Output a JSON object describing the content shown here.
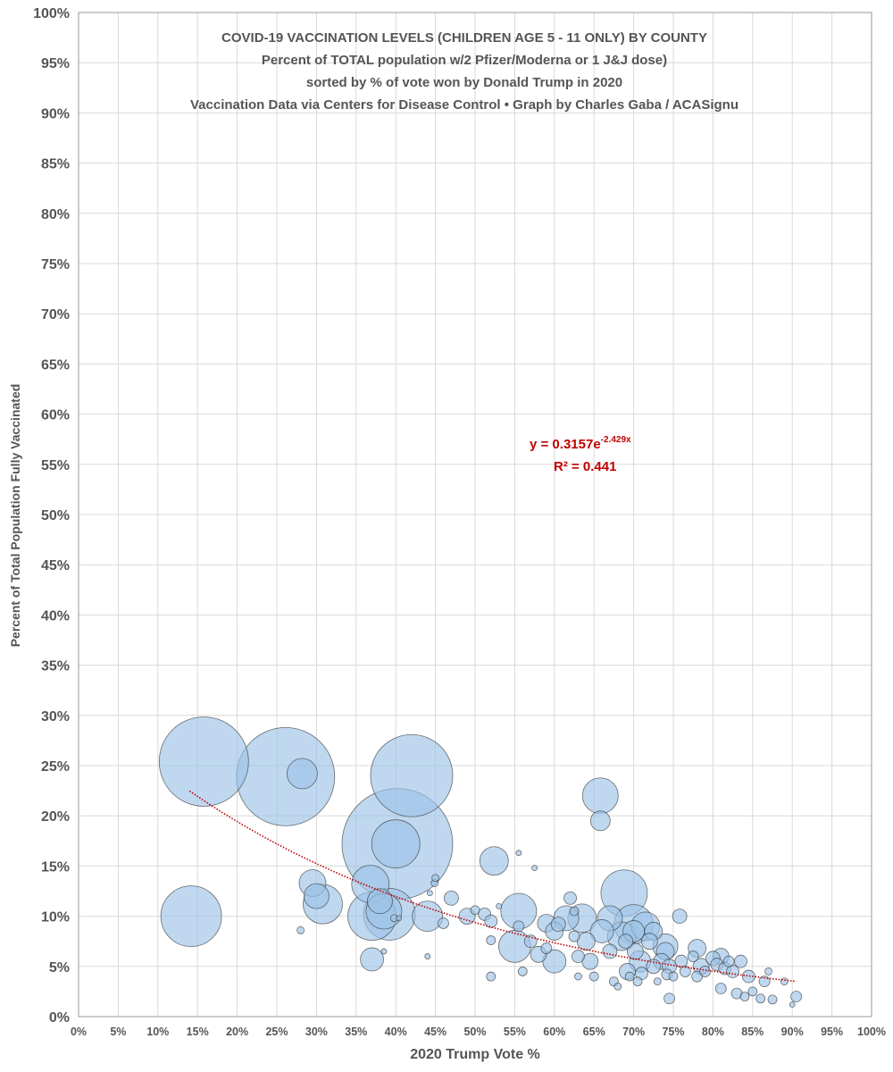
{
  "chart_data": {
    "type": "scatter",
    "title_lines": [
      "COVID-19 VACCINATION LEVELS (CHILDREN AGE 5 - 11 ONLY) BY COUNTY",
      "Percent of TOTAL population w/2 Pfizer/Moderna or 1 J&J dose)",
      "sorted by % of vote won by Donald Trump in 2020",
      "Vaccination Data via Centers for Disease Control • Graph by Charles Gaba / ACASignu"
    ],
    "xlabel": "2020 Trump Vote %",
    "ylabel": "Percent of Total Population Fully Vaccinated",
    "xlim": [
      0,
      100
    ],
    "ylim": [
      0,
      100
    ],
    "x_ticks": [
      "0%",
      "5%",
      "10%",
      "15%",
      "20%",
      "25%",
      "30%",
      "35%",
      "40%",
      "45%",
      "50%",
      "55%",
      "60%",
      "65%",
      "70%",
      "75%",
      "80%",
      "85%",
      "90%",
      "95%",
      "100%"
    ],
    "y_ticks": [
      "0%",
      "5%",
      "10%",
      "15%",
      "20%",
      "25%",
      "30%",
      "35%",
      "40%",
      "45%",
      "50%",
      "55%",
      "60%",
      "65%",
      "70%",
      "75%",
      "80%",
      "85%",
      "90%",
      "95%",
      "100%"
    ],
    "grid": true,
    "bubble_color": "#9dc3e6",
    "bubble_alpha": 0.65,
    "bubble_edge": "#333333",
    "trendline": {
      "type": "exponential",
      "a": 0.3157,
      "b": -2.429,
      "x_range": [
        14,
        90.5
      ],
      "color": "#c00000",
      "label_main": "y = 0.3157e",
      "label_exp": "-2.429x",
      "r2_label": "R² = 0.441"
    },
    "points": [
      {
        "x": 15.8,
        "y": 25.4,
        "size": 50
      },
      {
        "x": 14.2,
        "y": 10.0,
        "size": 34
      },
      {
        "x": 26.1,
        "y": 23.9,
        "size": 55
      },
      {
        "x": 28.2,
        "y": 24.2,
        "size": 17
      },
      {
        "x": 29.5,
        "y": 13.3,
        "size": 15
      },
      {
        "x": 30.0,
        "y": 12.0,
        "size": 14
      },
      {
        "x": 30.8,
        "y": 11.2,
        "size": 22
      },
      {
        "x": 28.0,
        "y": 8.6,
        "size": 4
      },
      {
        "x": 36.8,
        "y": 13.2,
        "size": 21
      },
      {
        "x": 37.0,
        "y": 10.0,
        "size": 27
      },
      {
        "x": 38.0,
        "y": 11.5,
        "size": 14
      },
      {
        "x": 38.5,
        "y": 10.5,
        "size": 20
      },
      {
        "x": 39.2,
        "y": 10.2,
        "size": 29
      },
      {
        "x": 40.2,
        "y": 17.2,
        "size": 62
      },
      {
        "x": 40.0,
        "y": 17.2,
        "size": 27
      },
      {
        "x": 42.0,
        "y": 24.0,
        "size": 46
      },
      {
        "x": 37.0,
        "y": 5.7,
        "size": 13
      },
      {
        "x": 38.5,
        "y": 6.5,
        "size": 3
      },
      {
        "x": 39.8,
        "y": 9.8,
        "size": 4
      },
      {
        "x": 40.4,
        "y": 9.8,
        "size": 3
      },
      {
        "x": 44.0,
        "y": 10.0,
        "size": 17
      },
      {
        "x": 44.3,
        "y": 12.3,
        "size": 3
      },
      {
        "x": 44.9,
        "y": 13.3,
        "size": 4
      },
      {
        "x": 45.0,
        "y": 13.8,
        "size": 4
      },
      {
        "x": 44.0,
        "y": 6.0,
        "size": 3
      },
      {
        "x": 46.0,
        "y": 9.3,
        "size": 6
      },
      {
        "x": 47.0,
        "y": 11.8,
        "size": 8
      },
      {
        "x": 49.0,
        "y": 10.0,
        "size": 9
      },
      {
        "x": 50.0,
        "y": 10.6,
        "size": 5
      },
      {
        "x": 51.2,
        "y": 10.2,
        "size": 7
      },
      {
        "x": 52.0,
        "y": 9.5,
        "size": 7
      },
      {
        "x": 52.4,
        "y": 15.5,
        "size": 16
      },
      {
        "x": 52.0,
        "y": 7.6,
        "size": 5
      },
      {
        "x": 53.0,
        "y": 11.0,
        "size": 3
      },
      {
        "x": 55.5,
        "y": 16.3,
        "size": 3
      },
      {
        "x": 52.0,
        "y": 4.0,
        "size": 5
      },
      {
        "x": 55.5,
        "y": 10.5,
        "size": 20
      },
      {
        "x": 55.0,
        "y": 7.0,
        "size": 18
      },
      {
        "x": 55.5,
        "y": 9.0,
        "size": 6
      },
      {
        "x": 56.0,
        "y": 4.5,
        "size": 5
      },
      {
        "x": 57.5,
        "y": 14.8,
        "size": 3
      },
      {
        "x": 57.0,
        "y": 7.5,
        "size": 7
      },
      {
        "x": 58.0,
        "y": 6.2,
        "size": 9
      },
      {
        "x": 59.0,
        "y": 9.3,
        "size": 10
      },
      {
        "x": 59.0,
        "y": 6.8,
        "size": 6
      },
      {
        "x": 60.0,
        "y": 5.5,
        "size": 13
      },
      {
        "x": 60.0,
        "y": 8.5,
        "size": 10
      },
      {
        "x": 60.5,
        "y": 9.2,
        "size": 8
      },
      {
        "x": 61.5,
        "y": 9.8,
        "size": 14
      },
      {
        "x": 62.0,
        "y": 11.8,
        "size": 7
      },
      {
        "x": 62.5,
        "y": 10.5,
        "size": 5
      },
      {
        "x": 62.5,
        "y": 8.0,
        "size": 6
      },
      {
        "x": 63.0,
        "y": 6.0,
        "size": 7
      },
      {
        "x": 63.5,
        "y": 9.8,
        "size": 16
      },
      {
        "x": 63.0,
        "y": 4.0,
        "size": 4
      },
      {
        "x": 64.0,
        "y": 7.5,
        "size": 10
      },
      {
        "x": 64.5,
        "y": 5.5,
        "size": 9
      },
      {
        "x": 65.0,
        "y": 4.0,
        "size": 5
      },
      {
        "x": 65.8,
        "y": 22.0,
        "size": 20
      },
      {
        "x": 65.8,
        "y": 19.5,
        "size": 11
      },
      {
        "x": 66.0,
        "y": 8.5,
        "size": 13
      },
      {
        "x": 67.0,
        "y": 9.8,
        "size": 14
      },
      {
        "x": 67.0,
        "y": 6.5,
        "size": 8
      },
      {
        "x": 67.5,
        "y": 3.5,
        "size": 5
      },
      {
        "x": 68.0,
        "y": 3.0,
        "size": 4
      },
      {
        "x": 68.5,
        "y": 8.0,
        "size": 16
      },
      {
        "x": 68.8,
        "y": 12.3,
        "size": 26
      },
      {
        "x": 69.0,
        "y": 7.5,
        "size": 8
      },
      {
        "x": 69.2,
        "y": 4.5,
        "size": 9
      },
      {
        "x": 69.5,
        "y": 4.0,
        "size": 5
      },
      {
        "x": 70.0,
        "y": 9.2,
        "size": 22
      },
      {
        "x": 70.0,
        "y": 8.5,
        "size": 12
      },
      {
        "x": 70.2,
        "y": 6.5,
        "size": 9
      },
      {
        "x": 70.5,
        "y": 3.5,
        "size": 5
      },
      {
        "x": 70.8,
        "y": 5.5,
        "size": 12
      },
      {
        "x": 71.0,
        "y": 4.3,
        "size": 7
      },
      {
        "x": 71.5,
        "y": 9.0,
        "size": 16
      },
      {
        "x": 72.0,
        "y": 7.5,
        "size": 9
      },
      {
        "x": 72.5,
        "y": 8.5,
        "size": 10
      },
      {
        "x": 72.5,
        "y": 5.0,
        "size": 8
      },
      {
        "x": 73.0,
        "y": 3.5,
        "size": 4
      },
      {
        "x": 73.5,
        "y": 5.5,
        "size": 9
      },
      {
        "x": 74.0,
        "y": 7.0,
        "size": 14
      },
      {
        "x": 74.0,
        "y": 6.5,
        "size": 10
      },
      {
        "x": 74.2,
        "y": 4.2,
        "size": 6
      },
      {
        "x": 74.5,
        "y": 5.0,
        "size": 8
      },
      {
        "x": 74.5,
        "y": 1.8,
        "size": 6
      },
      {
        "x": 75.0,
        "y": 4.0,
        "size": 5
      },
      {
        "x": 75.8,
        "y": 10.0,
        "size": 8
      },
      {
        "x": 76.0,
        "y": 5.5,
        "size": 7
      },
      {
        "x": 76.5,
        "y": 4.5,
        "size": 6
      },
      {
        "x": 77.5,
        "y": 6.0,
        "size": 6
      },
      {
        "x": 78.0,
        "y": 6.8,
        "size": 10
      },
      {
        "x": 78.5,
        "y": 5.0,
        "size": 9
      },
      {
        "x": 78.0,
        "y": 4.0,
        "size": 6
      },
      {
        "x": 79.0,
        "y": 4.5,
        "size": 6
      },
      {
        "x": 80.0,
        "y": 5.8,
        "size": 8
      },
      {
        "x": 80.5,
        "y": 5.2,
        "size": 7
      },
      {
        "x": 81.0,
        "y": 6.0,
        "size": 9
      },
      {
        "x": 81.5,
        "y": 4.8,
        "size": 7
      },
      {
        "x": 81.0,
        "y": 2.8,
        "size": 6
      },
      {
        "x": 82.0,
        "y": 5.5,
        "size": 6
      },
      {
        "x": 82.5,
        "y": 4.5,
        "size": 7
      },
      {
        "x": 83.0,
        "y": 2.3,
        "size": 6
      },
      {
        "x": 83.5,
        "y": 5.5,
        "size": 7
      },
      {
        "x": 84.0,
        "y": 2.0,
        "size": 5
      },
      {
        "x": 84.5,
        "y": 4.0,
        "size": 7
      },
      {
        "x": 85.0,
        "y": 2.5,
        "size": 5
      },
      {
        "x": 86.0,
        "y": 1.8,
        "size": 5
      },
      {
        "x": 86.5,
        "y": 3.5,
        "size": 6
      },
      {
        "x": 87.0,
        "y": 4.5,
        "size": 4
      },
      {
        "x": 87.5,
        "y": 1.7,
        "size": 5
      },
      {
        "x": 89.0,
        "y": 3.5,
        "size": 4
      },
      {
        "x": 90.0,
        "y": 1.2,
        "size": 3
      },
      {
        "x": 90.5,
        "y": 2.0,
        "size": 6
      }
    ]
  }
}
